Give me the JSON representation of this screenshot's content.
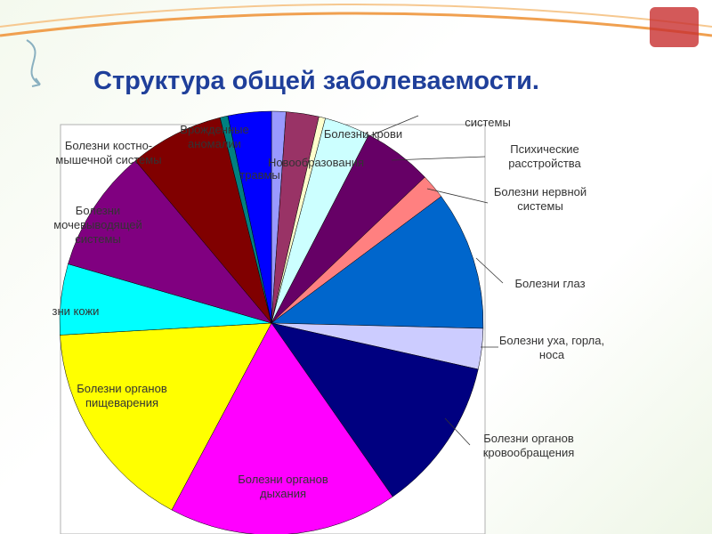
{
  "chart_data": {
    "type": "pie",
    "title": "Структура общей заболеваемости.",
    "categories": [
      null,
      "Новообразования",
      "Болезни крови",
      "системы",
      "Психические расстройства",
      "Болезни нервной системы",
      "Болезни глаз",
      "Болезни уха, горла, носа",
      "Болезни органов кровообращения",
      "Болезни органов дыхания",
      "Болезни органов пищеварения",
      "зни кожи",
      "Болезни мочевыводящей системы",
      "Болезни костно-мышечной системы",
      "Врожденные аномалии",
      "травмы"
    ],
    "values": [
      1.1,
      2.5,
      0.5,
      3.5,
      5.3,
      1.9,
      10.6,
      3.1,
      11.8,
      17.5,
      16.3,
      5.4,
      9.4,
      7.2,
      0.6,
      3.3
    ],
    "colors": [
      "#9999ff",
      "#993366",
      "#ffffcc",
      "#ccffff",
      "#660066",
      "#ff8080",
      "#0066cc",
      "#ccccff",
      "#000080",
      "#ff00ff",
      "#ffff00",
      "#00ffff",
      "#800080",
      "#800000",
      "#008080",
      "#0000ff"
    ]
  }
}
